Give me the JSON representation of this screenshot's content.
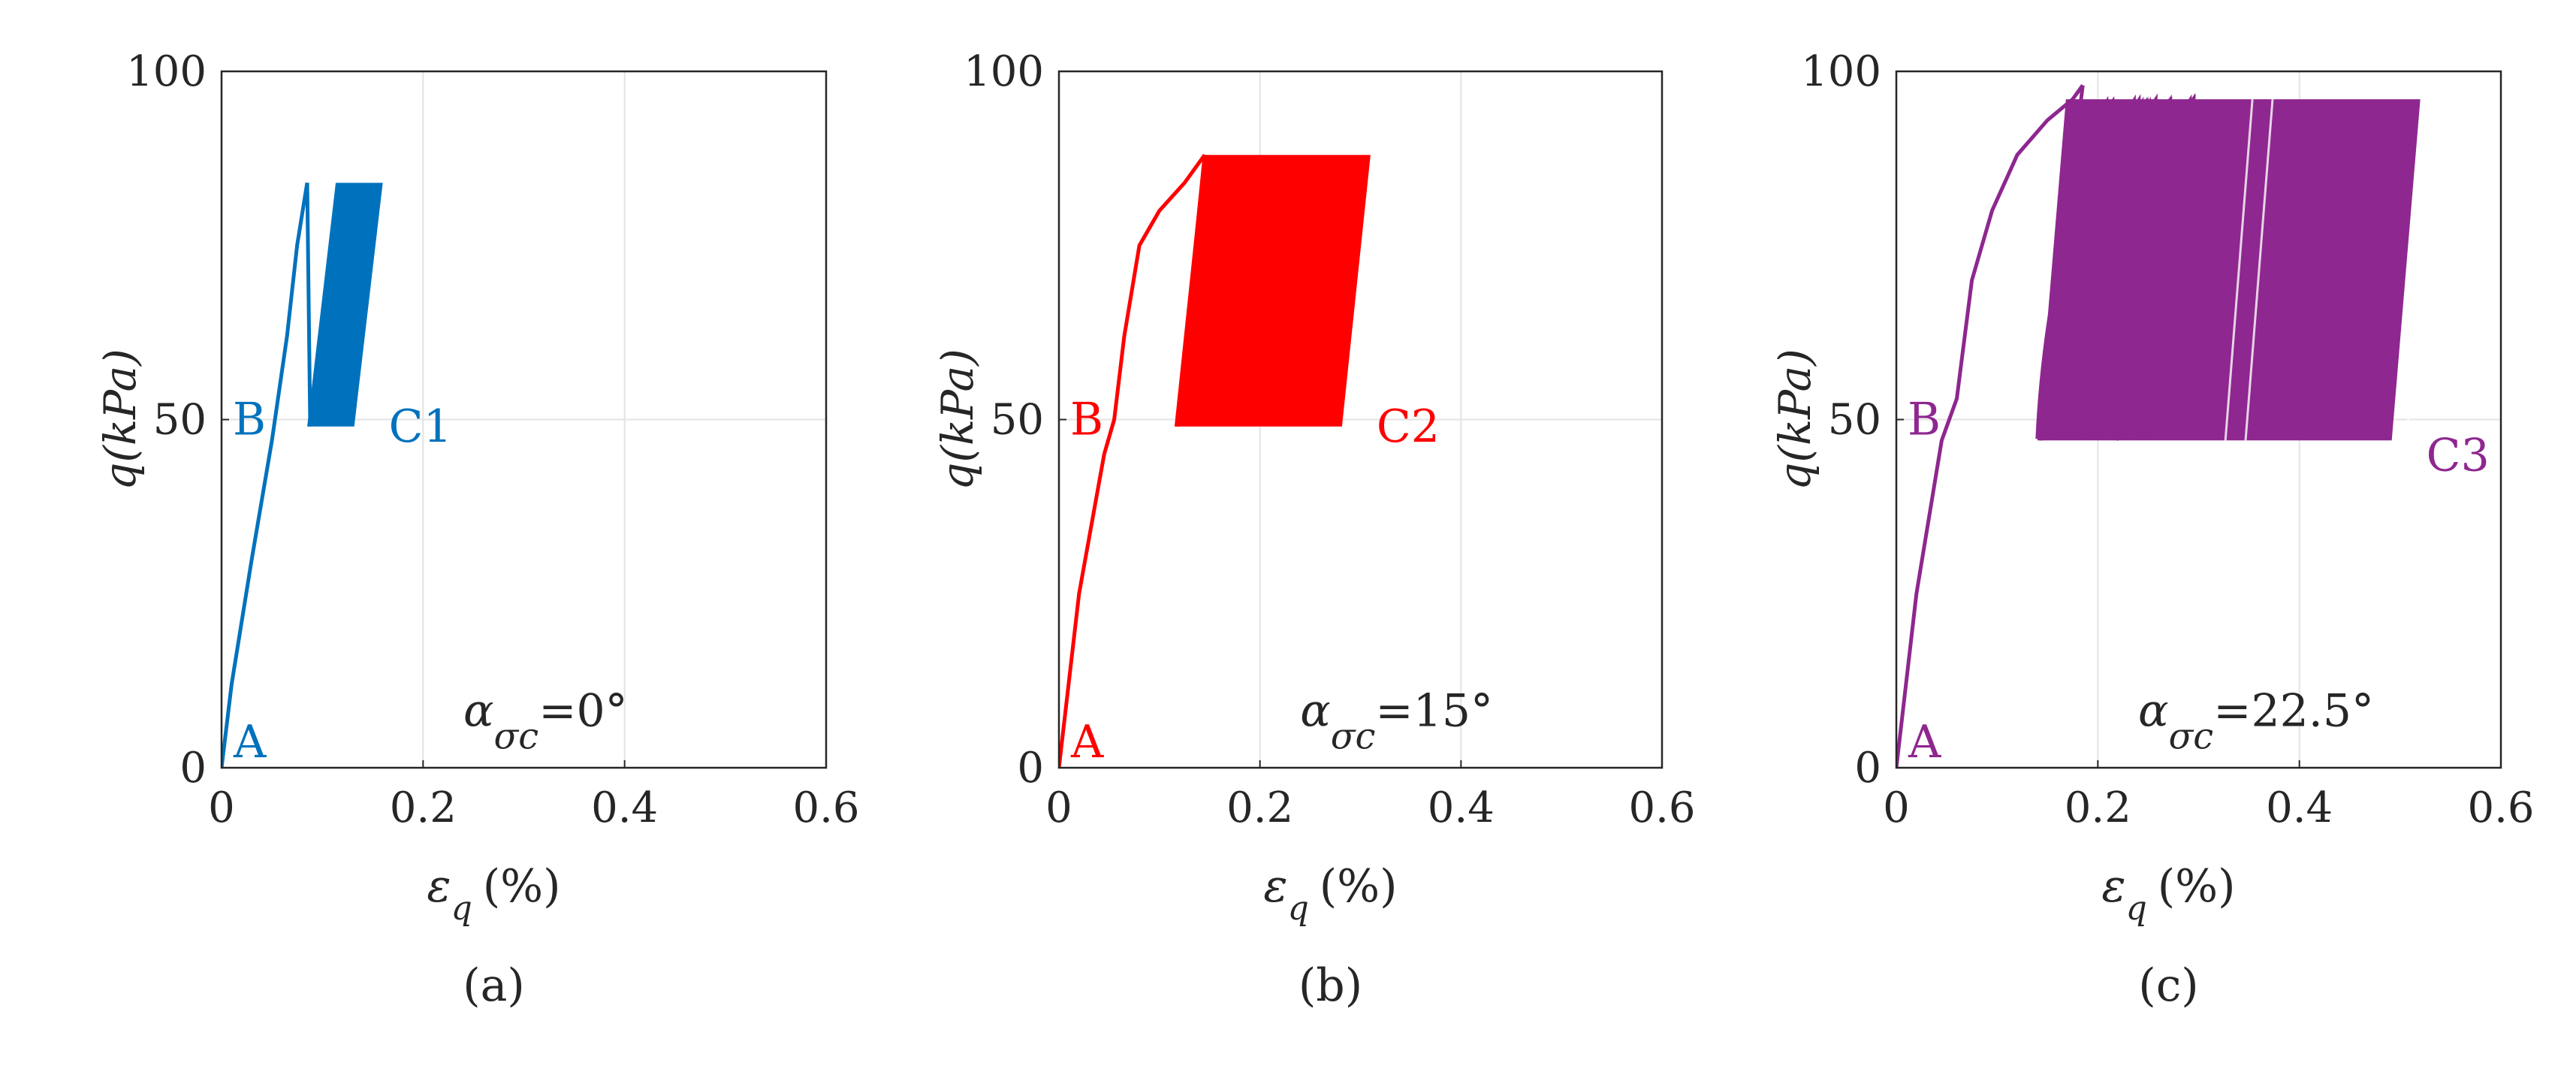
{
  "chart_data": [
    {
      "type": "line",
      "panel_label": "(a)",
      "xlabel": "ε",
      "xlabel_sub": "q",
      "xlabel_unit": "(%)",
      "ylabel": "q(kPa)",
      "xlim": [
        0,
        0.6
      ],
      "ylim": [
        0,
        100
      ],
      "x_ticks": [
        "0",
        "0.2",
        "0.4",
        "0.6"
      ],
      "y_ticks": [
        "0",
        "50",
        "100"
      ],
      "grid": true,
      "color": "#0072BD",
      "annotation": {
        "alpha": "α",
        "sub": "σc",
        "value": "=0°"
      },
      "point_labels": {
        "A": "A",
        "B": "B",
        "C": "C1"
      },
      "monotonic_path": {
        "x": [
          0,
          0.01,
          0.03,
          0.05,
          0.065,
          0.075,
          0.085
        ],
        "y": [
          0,
          12,
          30,
          47,
          62,
          75,
          84
        ]
      },
      "cyclic_band": {
        "x_start": 0.085,
        "x_end": 0.16,
        "q_min": 49,
        "q_max": 84
      }
    },
    {
      "type": "line",
      "panel_label": "(b)",
      "xlabel": "ε",
      "xlabel_sub": "q",
      "xlabel_unit": "(%)",
      "ylabel": "q(kPa)",
      "xlim": [
        0,
        0.6
      ],
      "ylim": [
        0,
        100
      ],
      "x_ticks": [
        "0",
        "0.2",
        "0.4",
        "0.6"
      ],
      "y_ticks": [
        "0",
        "50",
        "100"
      ],
      "grid": true,
      "color": "#FF0000",
      "annotation": {
        "alpha": "α",
        "sub": "σc",
        "value": "=15°"
      },
      "point_labels": {
        "A": "A",
        "B": "B",
        "C": "C2"
      },
      "monotonic_path": {
        "x": [
          0,
          0.02,
          0.045,
          0.055,
          0.065,
          0.08,
          0.1,
          0.125,
          0.145
        ],
        "y": [
          0,
          25,
          45,
          50,
          62,
          75,
          80,
          84,
          88
        ]
      },
      "cyclic_band": {
        "x_start": 0.115,
        "x_end": 0.31,
        "q_min": 49,
        "q_max": 88
      }
    },
    {
      "type": "line",
      "panel_label": "(c)",
      "xlabel": "ε",
      "xlabel_sub": "q",
      "xlabel_unit": "(%)",
      "ylabel": "q(kPa)",
      "xlim": [
        0,
        0.6
      ],
      "ylim": [
        0,
        100
      ],
      "x_ticks": [
        "0",
        "0.2",
        "0.4",
        "0.6"
      ],
      "y_ticks": [
        "0",
        "50",
        "100"
      ],
      "grid": true,
      "color": "#8E278F",
      "annotation": {
        "alpha": "α",
        "sub": "σc",
        "value": "=22.5°"
      },
      "point_labels": {
        "A": "A",
        "B": "B",
        "C": "C3"
      },
      "monotonic_path": {
        "x": [
          0,
          0.02,
          0.045,
          0.06,
          0.075,
          0.095,
          0.12,
          0.15,
          0.175,
          0.185
        ],
        "y": [
          0,
          25,
          47,
          53,
          70,
          80,
          88,
          93,
          96,
          98
        ]
      },
      "cyclic_band": {
        "x_start": 0.14,
        "x_end": 0.52,
        "q_min": 47,
        "q_max": 96
      }
    }
  ]
}
